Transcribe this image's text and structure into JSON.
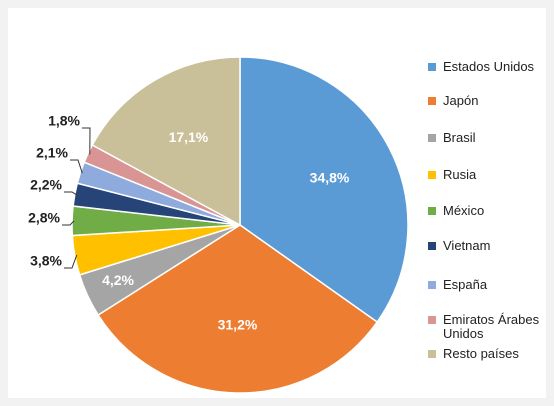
{
  "chart_data": {
    "type": "pie",
    "categories": [
      "Estados Unidos",
      "Japón",
      "Brasil",
      "Rusia",
      "México",
      "Vietnam",
      "España",
      "Emiratos Árabes Unidos",
      "Resto países"
    ],
    "values": [
      34.8,
      31.2,
      4.2,
      3.8,
      2.8,
      2.2,
      2.1,
      1.8,
      17.1
    ],
    "value_labels": [
      "34,8%",
      "31,2%",
      "4,2%",
      "3,8%",
      "2,8%",
      "2,2%",
      "2,1%",
      "1,8%",
      "17,1%"
    ],
    "colors": [
      "#5b9bd5",
      "#ed7d31",
      "#a5a5a5",
      "#ffc000",
      "#70ad47",
      "#264478",
      "#8faadc",
      "#d99594",
      "#c9bf98"
    ],
    "legend": "right"
  }
}
